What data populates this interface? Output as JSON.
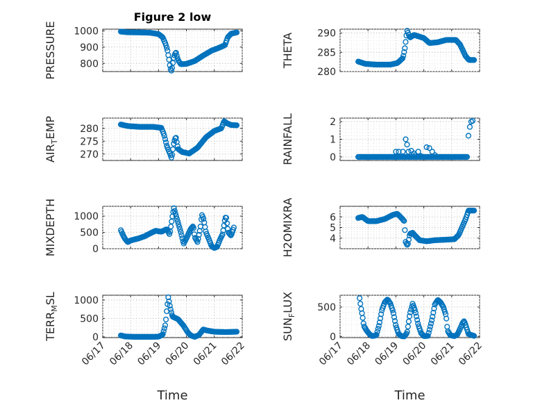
{
  "colors": {
    "marker": "#0072BD",
    "axis": "#262626"
  },
  "chart_data": [
    {
      "type": "scatter",
      "title": "Figure 2 low",
      "ylabel": "PRESSURE",
      "xlabel": "",
      "xlim": [
        0,
        5
      ],
      "ylim": [
        750,
        1010
      ],
      "yticks": [
        800,
        900,
        1000
      ],
      "xticks": [
        0,
        1,
        2,
        3,
        4,
        5
      ],
      "xticklabels": [
        "06/17",
        "06/18",
        "06/19",
        "06/20",
        "06/21",
        "06/22"
      ],
      "show_xticklabels": false,
      "grid": true,
      "keypoints": [
        [
          0.65,
          995
        ],
        [
          0.9,
          991
        ],
        [
          1.3,
          990
        ],
        [
          1.7,
          988
        ],
        [
          2.0,
          980
        ],
        [
          2.15,
          960
        ],
        [
          2.25,
          920
        ],
        [
          2.32,
          880
        ],
        [
          2.38,
          820
        ],
        [
          2.42,
          770
        ],
        [
          2.47,
          752
        ],
        [
          2.55,
          840
        ],
        [
          2.62,
          870
        ],
        [
          2.7,
          820
        ],
        [
          2.8,
          795
        ],
        [
          3.0,
          797
        ],
        [
          3.3,
          815
        ],
        [
          3.6,
          848
        ],
        [
          3.9,
          878
        ],
        [
          4.2,
          898
        ],
        [
          4.38,
          912
        ],
        [
          4.48,
          960
        ],
        [
          4.6,
          982
        ],
        [
          4.8,
          990
        ]
      ],
      "n": 150
    },
    {
      "type": "scatter",
      "title": "",
      "ylabel": "THETA",
      "xlabel": "",
      "xlim": [
        0,
        5
      ],
      "ylim": [
        280,
        291
      ],
      "yticks": [
        280,
        285,
        290
      ],
      "xticks": [
        0,
        1,
        2,
        3,
        4,
        5
      ],
      "xticklabels": [
        "06/17",
        "06/18",
        "06/19",
        "06/20",
        "06/21",
        "06/22"
      ],
      "show_xticklabels": false,
      "grid": true,
      "keypoints": [
        [
          0.65,
          282.6
        ],
        [
          0.9,
          282.0
        ],
        [
          1.3,
          281.8
        ],
        [
          1.8,
          281.8
        ],
        [
          2.05,
          282.2
        ],
        [
          2.25,
          283.5
        ],
        [
          2.32,
          286.0
        ],
        [
          2.4,
          290.7
        ],
        [
          2.5,
          288.8
        ],
        [
          2.65,
          289.5
        ],
        [
          3.0,
          288.7
        ],
        [
          3.2,
          287.4
        ],
        [
          3.5,
          287.6
        ],
        [
          3.8,
          288.2
        ],
        [
          4.15,
          288.2
        ],
        [
          4.3,
          287.0
        ],
        [
          4.4,
          285.5
        ],
        [
          4.5,
          284.0
        ],
        [
          4.62,
          283.0
        ],
        [
          4.8,
          283.0
        ]
      ],
      "n": 150
    },
    {
      "type": "scatter",
      "title": "",
      "ylabel": "AIR_TEMP",
      "xlabel": "",
      "xlim": [
        0,
        5
      ],
      "ylim": [
        267.5,
        284
      ],
      "yticks": [
        270,
        275,
        280
      ],
      "xticks": [
        0,
        1,
        2,
        3,
        4,
        5
      ],
      "xticklabels": [
        "06/17",
        "06/18",
        "06/19",
        "06/20",
        "06/21",
        "06/22"
      ],
      "show_xticklabels": false,
      "grid": true,
      "keypoints": [
        [
          0.65,
          281.5
        ],
        [
          0.9,
          280.9
        ],
        [
          1.3,
          280.6
        ],
        [
          1.8,
          280.6
        ],
        [
          2.1,
          280.2
        ],
        [
          2.2,
          277.5
        ],
        [
          2.3,
          273.0
        ],
        [
          2.4,
          270.5
        ],
        [
          2.47,
          268.3
        ],
        [
          2.55,
          274.5
        ],
        [
          2.62,
          276.8
        ],
        [
          2.7,
          272.0
        ],
        [
          2.85,
          270.8
        ],
        [
          3.1,
          270.2
        ],
        [
          3.4,
          272.5
        ],
        [
          3.7,
          276.5
        ],
        [
          4.0,
          279.0
        ],
        [
          4.25,
          280.0
        ],
        [
          4.35,
          282.8
        ],
        [
          4.45,
          282.0
        ],
        [
          4.6,
          281.3
        ],
        [
          4.8,
          281.2
        ]
      ],
      "n": 150
    },
    {
      "type": "scatter",
      "title": "",
      "ylabel": "RAINFALL",
      "xlabel": "",
      "xlim": [
        0,
        5
      ],
      "ylim": [
        -0.2,
        2.2
      ],
      "yticks": [
        0,
        1,
        2
      ],
      "xticks": [
        0,
        1,
        2,
        3,
        4,
        5
      ],
      "xticklabels": [
        "06/17",
        "06/18",
        "06/19",
        "06/20",
        "06/21",
        "06/22"
      ],
      "show_xticklabels": false,
      "grid": true,
      "baseline": {
        "x0": 0.65,
        "x1": 4.55,
        "y": 0,
        "n": 110
      },
      "points": [
        [
          2.0,
          0.3
        ],
        [
          2.1,
          0.3
        ],
        [
          2.25,
          0.3
        ],
        [
          2.35,
          1.0
        ],
        [
          2.4,
          0.7
        ],
        [
          2.45,
          0.3
        ],
        [
          2.55,
          0.35
        ],
        [
          2.65,
          0.2
        ],
        [
          2.7,
          0.1
        ],
        [
          2.8,
          0.3
        ],
        [
          2.9,
          0.05
        ],
        [
          3.1,
          0.55
        ],
        [
          3.2,
          0.5
        ],
        [
          3.3,
          0.3
        ],
        [
          3.4,
          0.1
        ],
        [
          4.6,
          1.2
        ],
        [
          4.65,
          1.7
        ],
        [
          4.7,
          2.0
        ],
        [
          4.75,
          2.05
        ]
      ]
    },
    {
      "type": "scatter",
      "title": "",
      "ylabel": "MIXDEPTH",
      "xlabel": "",
      "xlim": [
        0,
        5
      ],
      "ylim": [
        0,
        1300
      ],
      "yticks": [
        0,
        500,
        1000
      ],
      "xticks": [
        0,
        1,
        2,
        3,
        4,
        5
      ],
      "xticklabels": [
        "06/17",
        "06/18",
        "06/19",
        "06/20",
        "06/21",
        "06/22"
      ],
      "show_xticklabels": false,
      "grid": true,
      "keypoints": [
        [
          0.65,
          570
        ],
        [
          0.72,
          430
        ],
        [
          0.8,
          300
        ],
        [
          0.9,
          200
        ],
        [
          1.0,
          250
        ],
        [
          1.3,
          320
        ],
        [
          1.5,
          380
        ],
        [
          1.7,
          470
        ],
        [
          1.9,
          550
        ],
        [
          2.1,
          520
        ],
        [
          2.3,
          600
        ],
        [
          2.4,
          430
        ],
        [
          2.5,
          1000
        ],
        [
          2.55,
          1250
        ],
        [
          2.6,
          1100
        ],
        [
          2.7,
          800
        ],
        [
          2.8,
          500
        ],
        [
          2.9,
          150
        ],
        [
          3.0,
          320
        ],
        [
          3.15,
          600
        ],
        [
          3.25,
          700
        ],
        [
          3.3,
          350
        ],
        [
          3.4,
          200
        ],
        [
          3.5,
          650
        ],
        [
          3.55,
          1050
        ],
        [
          3.62,
          900
        ],
        [
          3.7,
          500
        ],
        [
          3.8,
          300
        ],
        [
          3.9,
          80
        ],
        [
          4.0,
          20
        ],
        [
          4.1,
          60
        ],
        [
          4.2,
          280
        ],
        [
          4.3,
          450
        ],
        [
          4.38,
          900
        ],
        [
          4.42,
          1000
        ],
        [
          4.5,
          500
        ],
        [
          4.6,
          400
        ],
        [
          4.7,
          650
        ]
      ],
      "n": 150
    },
    {
      "type": "scatter",
      "title": "",
      "ylabel": "H2OMIXRA",
      "xlabel": "",
      "xlim": [
        0,
        5
      ],
      "ylim": [
        3,
        7
      ],
      "yticks": [
        4,
        5,
        6
      ],
      "xticks": [
        0,
        1,
        2,
        3,
        4,
        5
      ],
      "xticklabels": [
        "06/17",
        "06/18",
        "06/19",
        "06/20",
        "06/21",
        "06/22"
      ],
      "show_xticklabels": false,
      "grid": true,
      "keypoints": [
        [
          0.65,
          5.9
        ],
        [
          0.8,
          6.0
        ],
        [
          1.0,
          5.6
        ],
        [
          1.3,
          5.6
        ],
        [
          1.6,
          5.8
        ],
        [
          1.9,
          6.2
        ],
        [
          2.05,
          6.3
        ],
        [
          2.2,
          5.9
        ],
        [
          2.3,
          5.6
        ],
        [
          2.35,
          3.6
        ],
        [
          2.42,
          3.3
        ],
        [
          2.5,
          4.4
        ],
        [
          2.6,
          4.5
        ],
        [
          2.7,
          4.2
        ],
        [
          2.85,
          3.8
        ],
        [
          3.1,
          3.7
        ],
        [
          3.4,
          3.8
        ],
        [
          3.8,
          3.85
        ],
        [
          4.1,
          3.9
        ],
        [
          4.25,
          4.3
        ],
        [
          4.4,
          5.2
        ],
        [
          4.5,
          5.8
        ],
        [
          4.6,
          6.6
        ],
        [
          4.8,
          6.6
        ]
      ],
      "n": 150
    },
    {
      "type": "scatter",
      "title": "",
      "ylabel": "TERR_MSL",
      "xlabel": "Time",
      "xlim": [
        0,
        5
      ],
      "ylim": [
        -20,
        1130
      ],
      "yticks": [
        0,
        500,
        1000
      ],
      "xticks": [
        0,
        1,
        2,
        3,
        4,
        5
      ],
      "xticklabels": [
        "06/17",
        "06/18",
        "06/19",
        "06/20",
        "06/21",
        "06/22"
      ],
      "show_xticklabels": true,
      "grid": true,
      "keypoints": [
        [
          0.65,
          40
        ],
        [
          0.8,
          10
        ],
        [
          1.2,
          0
        ],
        [
          1.6,
          0
        ],
        [
          2.0,
          5
        ],
        [
          2.15,
          60
        ],
        [
          2.25,
          350
        ],
        [
          2.3,
          750
        ],
        [
          2.35,
          1080
        ],
        [
          2.42,
          780
        ],
        [
          2.5,
          550
        ],
        [
          2.7,
          480
        ],
        [
          2.9,
          300
        ],
        [
          3.05,
          120
        ],
        [
          3.15,
          40
        ],
        [
          3.3,
          0
        ],
        [
          3.45,
          50
        ],
        [
          3.6,
          200
        ],
        [
          3.75,
          170
        ],
        [
          4.0,
          140
        ],
        [
          4.4,
          130
        ],
        [
          4.8,
          140
        ]
      ],
      "n": 150
    },
    {
      "type": "scatter",
      "title": "",
      "ylabel": "SUN_FLUX",
      "xlabel": "Time",
      "xlim": [
        0,
        5
      ],
      "ylim": [
        -20,
        700
      ],
      "yticks": [
        0,
        500
      ],
      "xticks": [
        0,
        1,
        2,
        3,
        4,
        5
      ],
      "xticklabels": [
        "06/17",
        "06/18",
        "06/19",
        "06/20",
        "06/21",
        "06/22"
      ],
      "show_xticklabels": true,
      "grid": true,
      "keypoints": [
        [
          0.7,
          650
        ],
        [
          0.75,
          480
        ],
        [
          0.8,
          350
        ],
        [
          0.85,
          180
        ],
        [
          0.95,
          100
        ],
        [
          1.05,
          40
        ],
        [
          1.15,
          5
        ],
        [
          1.3,
          20
        ],
        [
          1.4,
          200
        ],
        [
          1.5,
          450
        ],
        [
          1.6,
          580
        ],
        [
          1.7,
          630
        ],
        [
          1.8,
          560
        ],
        [
          1.9,
          420
        ],
        [
          2.0,
          180
        ],
        [
          2.1,
          40
        ],
        [
          2.2,
          5
        ],
        [
          2.3,
          0
        ],
        [
          2.4,
          60
        ],
        [
          2.5,
          380
        ],
        [
          2.6,
          560
        ],
        [
          2.7,
          420
        ],
        [
          2.8,
          200
        ],
        [
          2.9,
          60
        ],
        [
          3.0,
          5
        ],
        [
          3.15,
          10
        ],
        [
          3.3,
          300
        ],
        [
          3.4,
          550
        ],
        [
          3.5,
          620
        ],
        [
          3.6,
          580
        ],
        [
          3.7,
          500
        ],
        [
          3.8,
          350
        ],
        [
          3.85,
          100
        ],
        [
          3.95,
          20
        ],
        [
          4.1,
          5
        ],
        [
          4.2,
          30
        ],
        [
          4.3,
          130
        ],
        [
          4.4,
          240
        ],
        [
          4.45,
          260
        ],
        [
          4.55,
          120
        ],
        [
          4.6,
          40
        ],
        [
          4.8,
          10
        ]
      ],
      "n": 150
    }
  ]
}
